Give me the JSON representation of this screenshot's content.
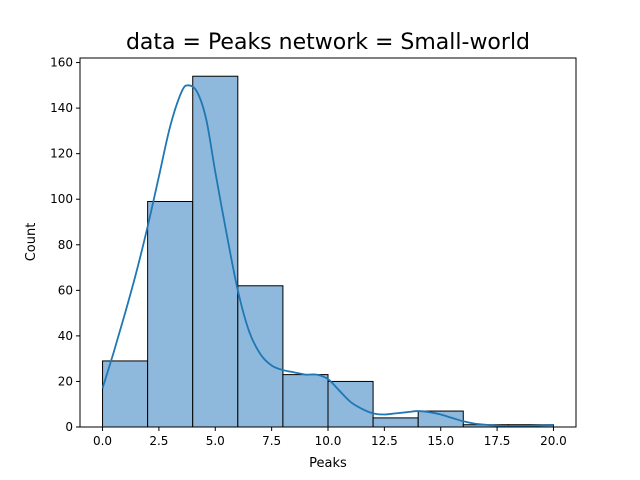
{
  "chart_data": {
    "type": "bar",
    "title": "data = Peaks network = Small-world",
    "xlabel": "Peaks",
    "ylabel": "Count",
    "xlim": [
      -1,
      21
    ],
    "ylim": [
      0,
      162
    ],
    "grid": false,
    "bin_edges": [
      0,
      2,
      4,
      6,
      8,
      10,
      12,
      14,
      16,
      18,
      20
    ],
    "values": [
      29,
      99,
      154,
      62,
      23,
      20,
      4,
      7,
      1,
      1
    ],
    "x_ticks": [
      0,
      2.5,
      5,
      7.5,
      10,
      12.5,
      15,
      17.5,
      20
    ],
    "x_tick_labels": [
      "0.0",
      "2.5",
      "5.0",
      "7.5",
      "10.0",
      "12.5",
      "15.0",
      "17.5",
      "20.0"
    ],
    "y_ticks": [
      0,
      20,
      40,
      60,
      80,
      100,
      120,
      140,
      160
    ],
    "y_tick_labels": [
      "0",
      "20",
      "40",
      "60",
      "80",
      "100",
      "120",
      "140",
      "160"
    ],
    "kde": {
      "x": [
        0,
        0.5,
        1,
        1.5,
        2,
        2.5,
        3,
        3.5,
        3.8,
        4.2,
        4.6,
        5,
        5.5,
        6,
        6.5,
        7,
        7.5,
        8,
        8.5,
        9,
        9.5,
        10,
        10.5,
        11,
        11.5,
        12,
        12.5,
        13,
        13.5,
        14,
        14.5,
        15,
        15.5,
        16,
        16.5,
        17,
        17.5,
        18,
        18.5,
        19,
        19.5,
        20
      ],
      "y": [
        17,
        33,
        50,
        68,
        88,
        110,
        132,
        147,
        150,
        147,
        135,
        112,
        85,
        60,
        42,
        32,
        27,
        25,
        24,
        23,
        23,
        21,
        16,
        11,
        8,
        6,
        5.5,
        6,
        6.5,
        7,
        6.5,
        5.5,
        4,
        2.5,
        1.5,
        1,
        0.6,
        0.4,
        0.4,
        0.5,
        0.7,
        0.9
      ]
    },
    "colors": {
      "bar": "#8fb9dc",
      "line": "#1f77b4"
    }
  }
}
